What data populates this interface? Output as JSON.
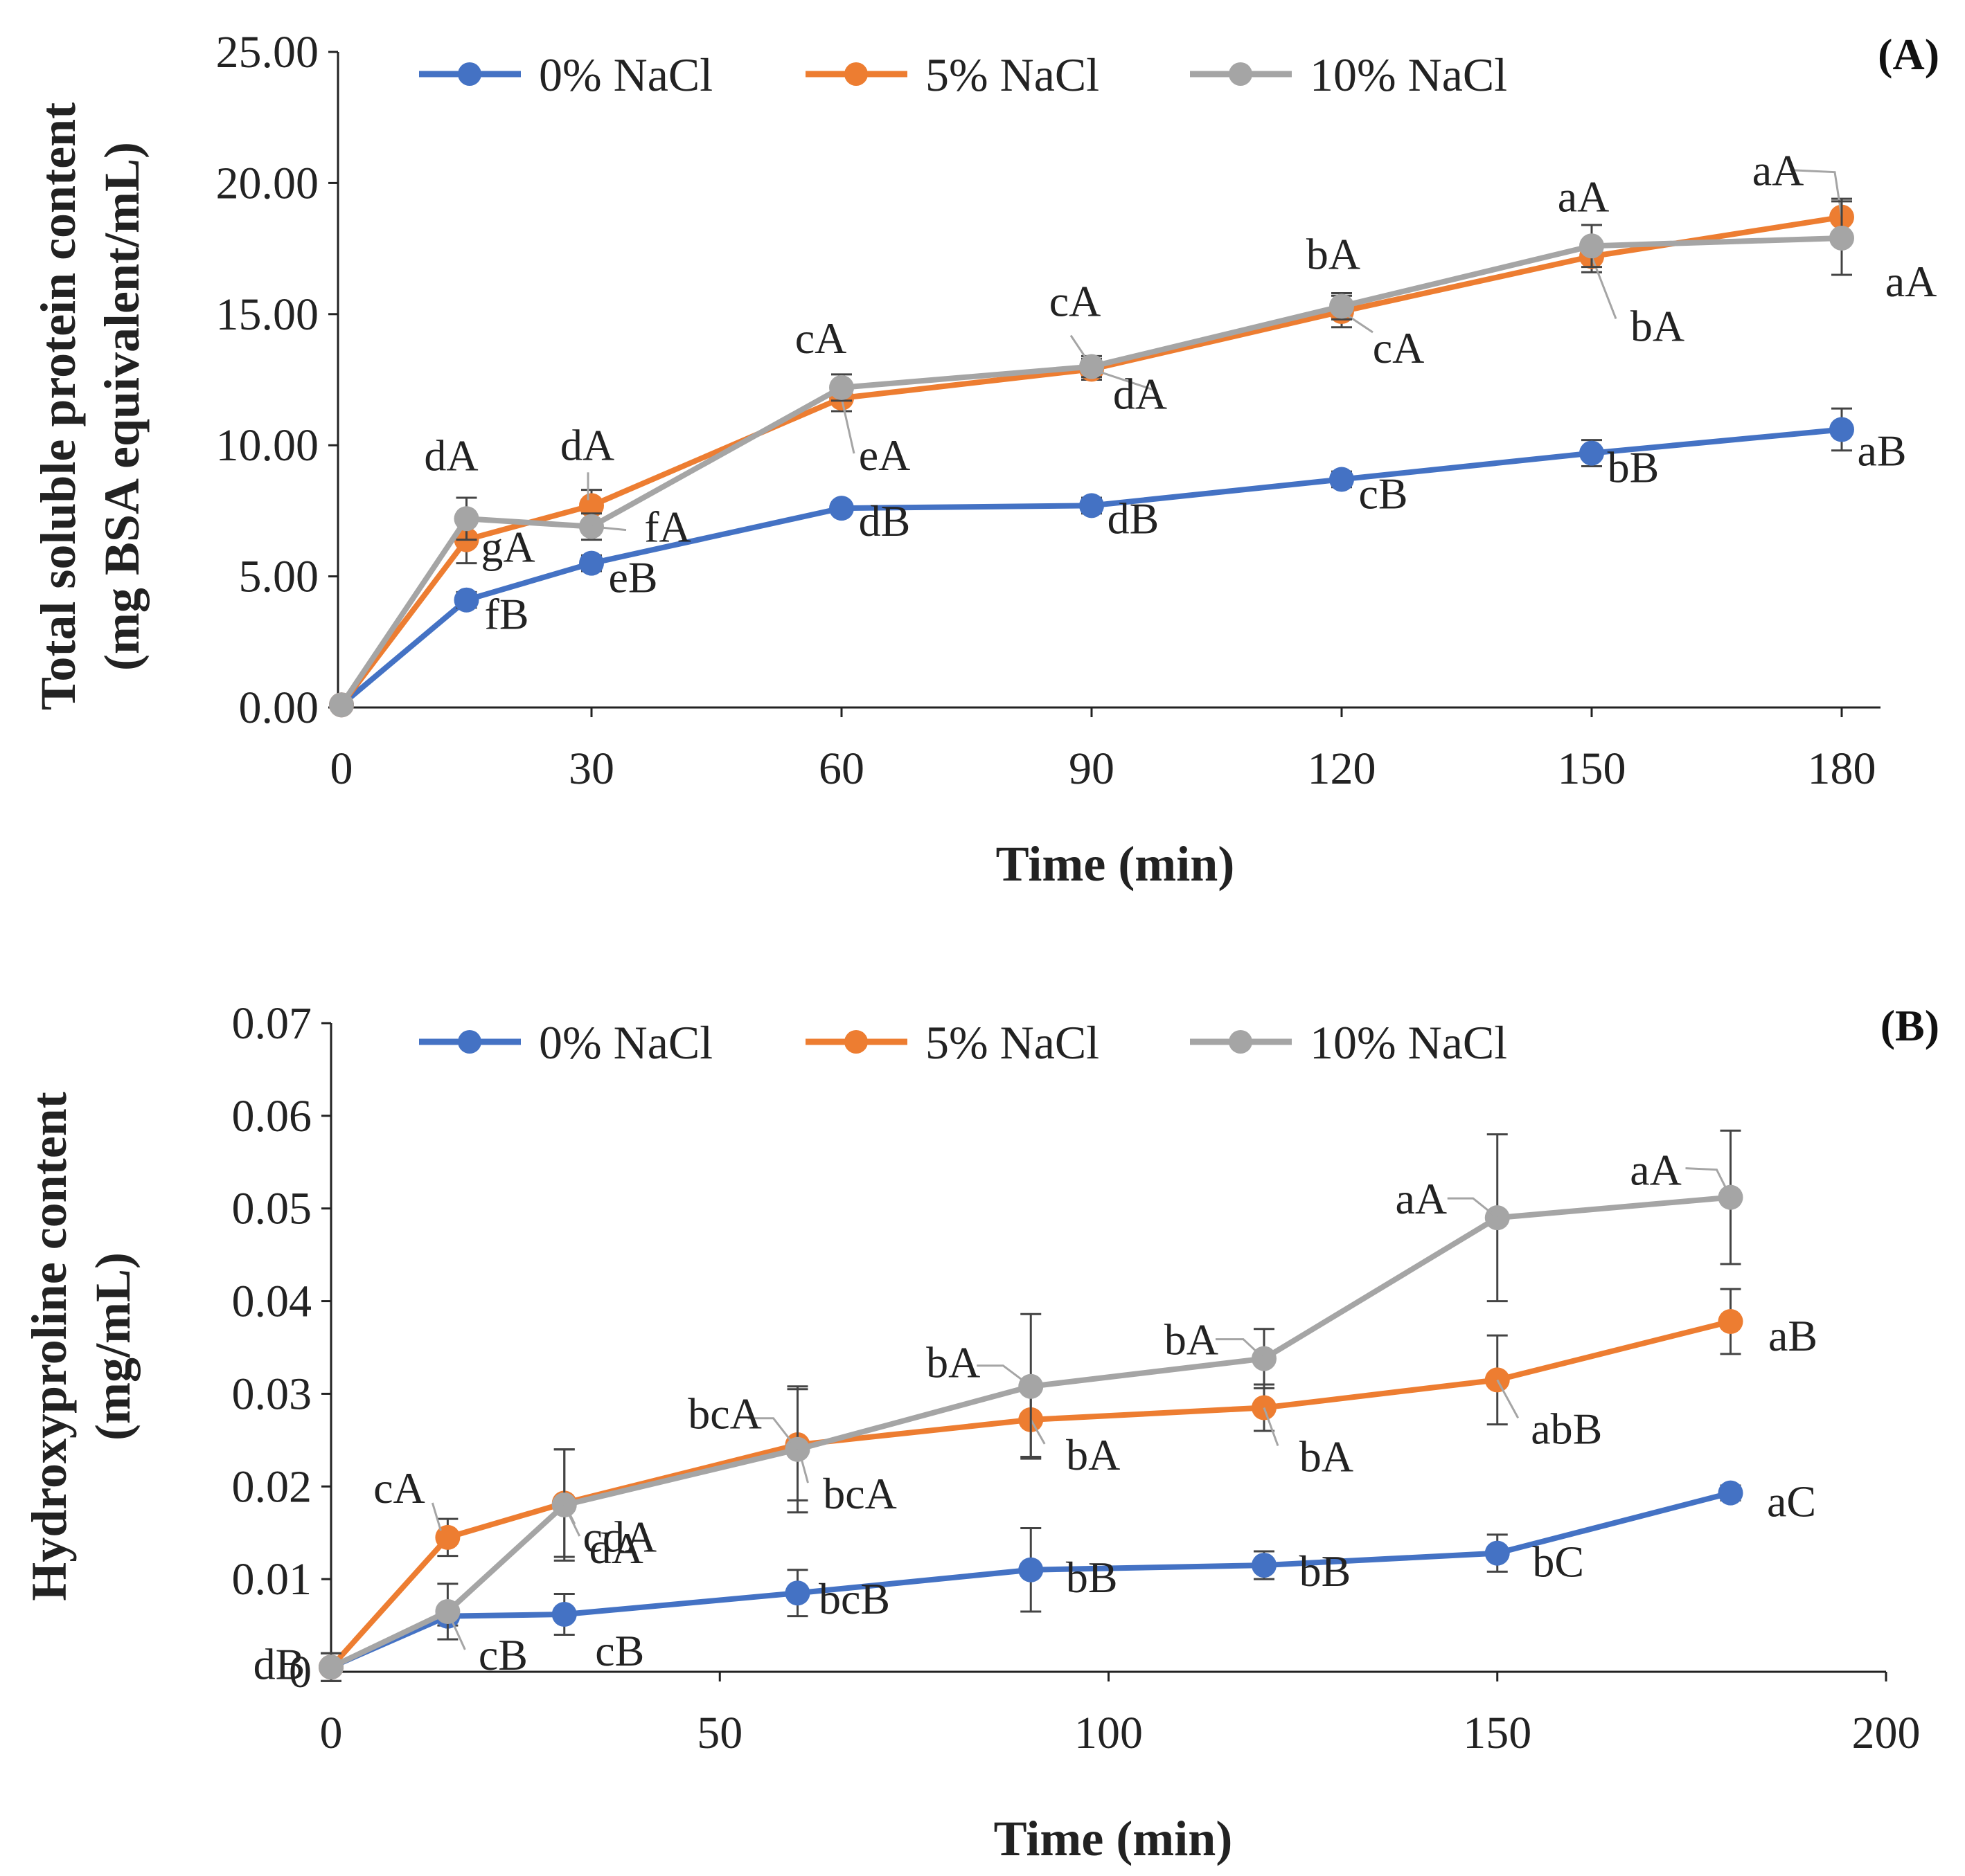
{
  "chart_data": [
    {
      "type": "line",
      "panel_label": "(A)",
      "xlabel": "Time (min)",
      "ylabel_lines": [
        "Total soluble protein content",
        "(mg BSA equivalent/mL)"
      ],
      "x_axis_kind": "category",
      "x": [
        0,
        15,
        30,
        60,
        90,
        120,
        150,
        180
      ],
      "x_ticks": [
        0,
        30,
        60,
        90,
        120,
        150,
        180
      ],
      "xlim": [
        0,
        186
      ],
      "ylim": [
        0,
        25
      ],
      "y_ticks": [
        0,
        5,
        10,
        15,
        20,
        25
      ],
      "y_tick_labels": [
        "0.00",
        "5.00",
        "10.00",
        "15.00",
        "20.00",
        "25.00"
      ],
      "legend": [
        "0% NaCl",
        "5% NaCl",
        "10% NaCl"
      ],
      "series": [
        {
          "name": "0% NaCl",
          "color": "#4472C4",
          "values": [
            0.1,
            4.1,
            5.5,
            7.6,
            7.7,
            8.7,
            9.7,
            10.6
          ],
          "errors": [
            0.1,
            0.3,
            0.3,
            0.2,
            0.3,
            0.3,
            0.5,
            0.8
          ],
          "labels": [
            "",
            "fB",
            "eB",
            "dB",
            "dB",
            "cB",
            "bB",
            "aB"
          ]
        },
        {
          "name": "5% NaCl",
          "color": "#ED7D31",
          "values": [
            0.1,
            6.4,
            7.7,
            11.8,
            12.9,
            15.1,
            17.2,
            18.7
          ],
          "errors": [
            0.1,
            0.9,
            0.6,
            0.5,
            0.4,
            0.6,
            0.6,
            0.7
          ],
          "labels": [
            "",
            "gA",
            "dA",
            "eA",
            "dA",
            "cA",
            "bA",
            "aA"
          ]
        },
        {
          "name": "10% NaCl",
          "color": "#A5A5A5",
          "values": [
            0.1,
            7.2,
            6.9,
            12.2,
            13.0,
            15.3,
            17.6,
            17.9
          ],
          "errors": [
            0.1,
            0.8,
            0.5,
            0.5,
            0.4,
            0.5,
            0.8,
            1.4
          ],
          "labels": [
            "",
            "dA",
            "fA",
            "cA",
            "cA",
            "bA",
            "aA",
            "aA"
          ]
        }
      ]
    },
    {
      "type": "scatter",
      "panel_label": "(B)",
      "xlabel": "Time (min)",
      "ylabel_lines": [
        "Hydroxyproline content",
        "(mg/mL)"
      ],
      "x_axis_kind": "linear",
      "x": [
        0,
        15,
        30,
        60,
        90,
        120,
        150,
        180
      ],
      "x_ticks": [
        0,
        50,
        100,
        150,
        200
      ],
      "xlim": [
        0,
        200
      ],
      "ylim": [
        0,
        0.07
      ],
      "y_ticks": [
        0,
        0.01,
        0.02,
        0.03,
        0.04,
        0.05,
        0.06,
        0.07
      ],
      "y_tick_labels": [
        "0",
        "0.01",
        "0.02",
        "0.03",
        "0.04",
        "0.05",
        "0.06",
        "0.07"
      ],
      "legend": [
        "0% NaCl",
        "5% NaCl",
        "10% NaCl"
      ],
      "series": [
        {
          "name": "0% NaCl",
          "color": "#4472C4",
          "values": [
            0.0005,
            0.006,
            0.0062,
            0.0085,
            0.011,
            0.0115,
            0.0128,
            0.0193
          ],
          "errors": [
            0.0015,
            0.001,
            0.0022,
            0.0025,
            0.0045,
            0.0015,
            0.002,
            0.0008
          ],
          "labels": [
            "",
            "",
            "cB",
            "bcB",
            "bB",
            "bB",
            "bC",
            "aC"
          ]
        },
        {
          "name": "5% NaCl",
          "color": "#ED7D31",
          "values": [
            0.0005,
            0.0145,
            0.0182,
            0.0245,
            0.0272,
            0.0285,
            0.0315,
            0.0378
          ],
          "errors": [
            0.0015,
            0.002,
            0.0058,
            0.006,
            0.004,
            0.0025,
            0.0048,
            0.0035
          ],
          "labels": [
            "",
            "cA",
            "cdA",
            "bcA",
            "bA",
            "bA",
            "abB",
            "aB"
          ]
        },
        {
          "name": "10% NaCl",
          "color": "#A5A5A5",
          "values": [
            0.0005,
            0.0065,
            0.018,
            0.024,
            0.0308,
            0.0338,
            0.049,
            0.0512
          ],
          "errors": [
            0.0015,
            0.003,
            0.006,
            0.0068,
            0.0078,
            0.0032,
            0.009,
            0.0072
          ],
          "labels": [
            "dB",
            "cB",
            "dA",
            "bcA",
            "bA",
            "bA",
            "aA",
            "aA"
          ]
        }
      ]
    }
  ]
}
